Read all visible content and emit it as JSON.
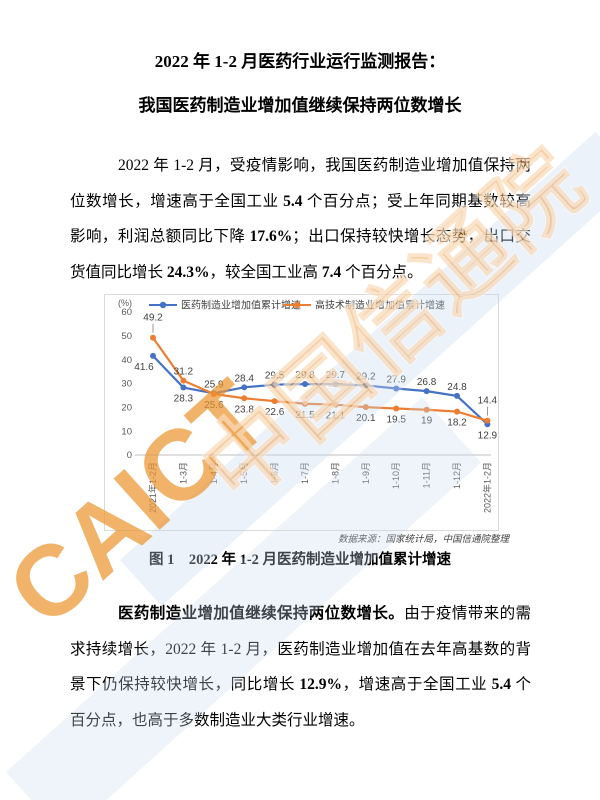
{
  "title": {
    "line1": "2022 年 1-2 月医药行业运行监测报告：",
    "line2": "我国医药制造业增加值继续保持两位数增长"
  },
  "paragraphs": [
    {
      "runs": [
        {
          "t": "2022 年 1-2 月，受疫情影响，我国医药制造业增加值保持两位数增长，增速高于全国工业 ",
          "b": false
        },
        {
          "t": "5.4",
          "b": true
        },
        {
          "t": " 个百分点；受上年同期基数较高影响，利润总额同比下降 ",
          "b": false
        },
        {
          "t": "17.6%",
          "b": true
        },
        {
          "t": "；出口保持较快增长态势，出口交货值同比增长 ",
          "b": false
        },
        {
          "t": "24.3%",
          "b": true
        },
        {
          "t": "，较全国工业高 ",
          "b": false
        },
        {
          "t": "7.4",
          "b": true
        },
        {
          "t": " 个百分点。",
          "b": false
        }
      ]
    },
    {
      "runs": [
        {
          "t": "医药制造业增加值继续保持两位数增长。",
          "b": true
        },
        {
          "t": "由于疫情带来的需求持续增长，2022 年 1-2 月，医药制造业增加值在去年高基数的背景下仍保持较快增长，同比增长 ",
          "b": false
        },
        {
          "t": "12.9%",
          "b": true
        },
        {
          "t": "，增速高于全国工业 ",
          "b": false
        },
        {
          "t": "5.4",
          "b": true
        },
        {
          "t": " 个百分点，也高于多数制造业大类行业增速。",
          "b": false
        }
      ]
    }
  ],
  "figure": {
    "source": "数据来源：国家统计局，中国信通院整理",
    "caption": "图 1　2022 年 1-2 月医药制造业增加值累计增速"
  },
  "watermark": {
    "cn": "中国信通院",
    "caict": "CAICT",
    "orange": "#EB9430",
    "light_blue": "#C7D9F0"
  },
  "chart_data": {
    "type": "line",
    "title": "",
    "xlabel": "",
    "ylabel": "(%)",
    "ylim": [
      0,
      60
    ],
    "yticks": [
      0,
      10,
      20,
      30,
      40,
      50,
      60
    ],
    "grid": false,
    "legend_position": "top",
    "categories": [
      "2021年1-2月",
      "1-3月",
      "1-4月",
      "1-5月",
      "1-6月",
      "1-7月",
      "1-8月",
      "1-9月",
      "1-10月",
      "1-11月",
      "1-12月",
      "2022年1-2月"
    ],
    "series": [
      {
        "name": "医药制造业增加值累计增速",
        "color": "#4472C4",
        "values": [
          41.6,
          28.3,
          25.9,
          28.4,
          29.5,
          29.8,
          29.7,
          29.2,
          27.9,
          26.8,
          24.8,
          12.9
        ],
        "label_pos": [
          "b",
          "b",
          "a",
          "a",
          "a",
          "a",
          "a",
          "a",
          "a",
          "a",
          "a",
          "b"
        ],
        "leader": []
      },
      {
        "name": "高技术制造业增加值累计增速",
        "color": "#ED7D31",
        "values": [
          49.2,
          31.2,
          25.6,
          23.8,
          22.6,
          21.5,
          21.1,
          20.1,
          19.5,
          19,
          18.2,
          14.4
        ],
        "label_pos": [
          "a",
          "a",
          "b",
          "b",
          "b",
          "b",
          "b",
          "b",
          "b",
          "b",
          "b",
          "a"
        ],
        "leader": [
          0,
          11
        ]
      }
    ]
  }
}
